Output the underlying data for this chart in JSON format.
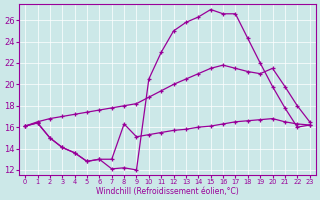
{
  "bg_color": "#cce8e8",
  "line_color": "#990099",
  "xlabel": "Windchill (Refroidissement éolien,°C)",
  "xlim_min": -0.5,
  "xlim_max": 23.5,
  "ylim_min": 11.5,
  "ylim_max": 27.5,
  "xticks": [
    0,
    1,
    2,
    3,
    4,
    5,
    6,
    7,
    8,
    9,
    10,
    11,
    12,
    13,
    14,
    15,
    16,
    17,
    18,
    19,
    20,
    21,
    22,
    23
  ],
  "yticks": [
    12,
    14,
    16,
    18,
    20,
    22,
    24,
    26
  ],
  "curve_flat_x": [
    0,
    1,
    2,
    3,
    4,
    5,
    6,
    7,
    8,
    9,
    10,
    11,
    12,
    13,
    14,
    15,
    16,
    17,
    18,
    19,
    20,
    21,
    22,
    23
  ],
  "curve_flat_y": [
    16.1,
    16.4,
    15.0,
    14.1,
    13.6,
    12.8,
    13.0,
    13.0,
    16.3,
    15.1,
    15.3,
    15.5,
    15.7,
    15.8,
    16.0,
    16.1,
    16.3,
    16.5,
    16.6,
    16.7,
    16.8,
    16.5,
    16.3,
    16.2
  ],
  "curve_mid_x": [
    0,
    1,
    2,
    3,
    4,
    5,
    6,
    7,
    8,
    9,
    10,
    11,
    12,
    13,
    14,
    15,
    16,
    17,
    18,
    19,
    20,
    21,
    22,
    23
  ],
  "curve_mid_y": [
    16.1,
    16.5,
    16.8,
    17.0,
    17.2,
    17.4,
    17.6,
    17.8,
    18.0,
    18.2,
    18.8,
    19.4,
    20.0,
    20.5,
    21.0,
    21.5,
    21.8,
    21.5,
    21.2,
    21.0,
    21.5,
    19.8,
    18.0,
    16.5
  ],
  "curve_top_x": [
    0,
    1,
    2,
    3,
    4,
    5,
    6,
    7,
    8,
    9,
    10,
    11,
    12,
    13,
    14,
    15,
    16,
    17,
    18,
    19,
    20,
    21,
    22,
    23
  ],
  "curve_top_y": [
    16.1,
    16.4,
    15.0,
    14.1,
    13.6,
    12.8,
    13.0,
    12.1,
    12.2,
    12.0,
    20.5,
    23.0,
    25.0,
    25.8,
    26.3,
    27.0,
    26.6,
    26.6,
    24.3,
    22.0,
    19.8,
    17.8,
    16.0,
    16.2
  ]
}
